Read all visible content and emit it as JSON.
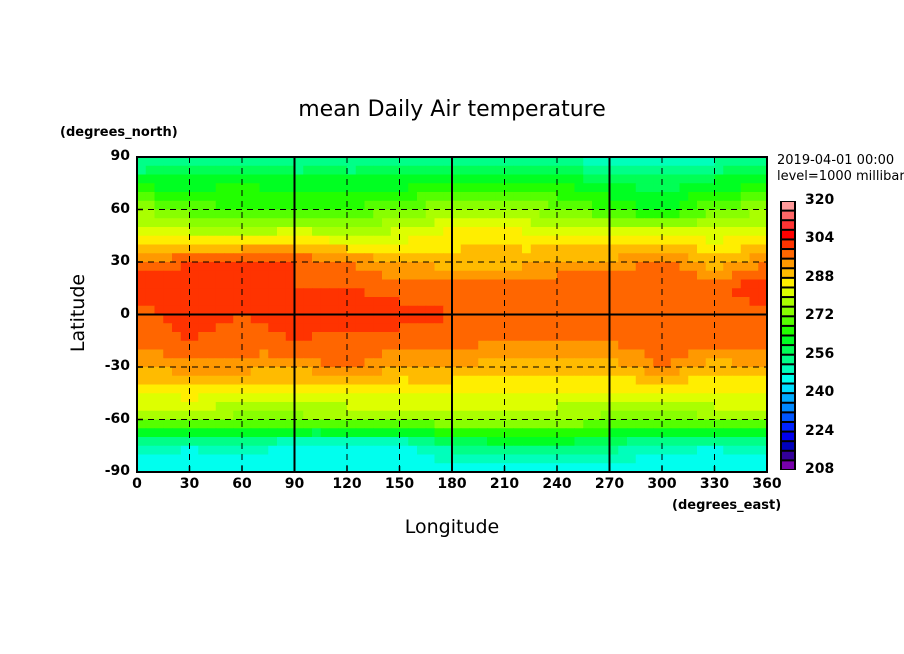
{
  "chart_data": {
    "type": "heatmap",
    "title": "mean Daily Air temperature",
    "xlabel": "Longitude",
    "ylabel": "Latitude",
    "x_units": "(degrees_east)",
    "y_units": "(degrees_north)",
    "annotation_time": "2019-04-01 00:00",
    "annotation_level": "level=1000 millibar",
    "xlim": [
      0,
      360
    ],
    "ylim": [
      -90,
      90
    ],
    "xticks": [
      "0",
      "30",
      "60",
      "90",
      "120",
      "150",
      "180",
      "210",
      "240",
      "270",
      "300",
      "330",
      "360"
    ],
    "yticks": [
      "90",
      "60",
      "30",
      "0",
      "-30",
      "-60",
      "-90"
    ],
    "grid": true,
    "colorbar": {
      "min": 208,
      "max": 320,
      "step": 4,
      "tick_labels": [
        "320",
        "304",
        "288",
        "272",
        "256",
        "240",
        "224",
        "208"
      ],
      "colors_low_to_high": [
        "#7700aa",
        "#330099",
        "#0000bb",
        "#0000ee",
        "#0022ff",
        "#0055ff",
        "#0088ff",
        "#00aaff",
        "#00ddff",
        "#00ffee",
        "#00ffbb",
        "#00ff88",
        "#00ff55",
        "#00ff22",
        "#22ff00",
        "#55ff00",
        "#88ff00",
        "#aaff00",
        "#ddff00",
        "#ffee00",
        "#ffbb00",
        "#ff9900",
        "#ff6600",
        "#ff3300",
        "#ff0000",
        "#ff3333",
        "#ff6666",
        "#ff9999"
      ]
    },
    "grid_lon": [
      0,
      30,
      60,
      90,
      120,
      150,
      180,
      210,
      240,
      270,
      300,
      330,
      360
    ],
    "grid_lat": [
      90,
      75,
      60,
      45,
      30,
      15,
      0,
      -15,
      -30,
      -45,
      -60,
      -75,
      -90
    ],
    "values_K": [
      [
        250,
        250,
        250,
        250,
        250,
        250,
        250,
        250,
        250,
        250,
        250,
        250,
        250
      ],
      [
        262,
        262,
        264,
        262,
        262,
        262,
        264,
        266,
        264,
        260,
        258,
        262,
        262
      ],
      [
        276,
        270,
        268,
        266,
        268,
        272,
        276,
        278,
        272,
        268,
        262,
        272,
        276
      ],
      [
        284,
        282,
        280,
        284,
        280,
        282,
        286,
        286,
        284,
        284,
        286,
        282,
        284
      ],
      [
        296,
        300,
        304,
        300,
        296,
        292,
        290,
        290,
        292,
        292,
        298,
        290,
        296
      ],
      [
        304,
        302,
        302,
        300,
        300,
        298,
        298,
        298,
        300,
        300,
        300,
        298,
        304
      ],
      [
        298,
        302,
        300,
        302,
        304,
        302,
        300,
        298,
        298,
        298,
        300,
        298,
        298
      ],
      [
        298,
        300,
        298,
        300,
        298,
        298,
        298,
        296,
        296,
        296,
        300,
        298,
        298
      ],
      [
        292,
        294,
        294,
        292,
        298,
        292,
        292,
        290,
        290,
        290,
        296,
        290,
        292
      ],
      [
        284,
        286,
        284,
        284,
        284,
        284,
        284,
        284,
        284,
        284,
        282,
        284,
        284
      ],
      [
        276,
        276,
        274,
        274,
        276,
        276,
        276,
        276,
        276,
        274,
        272,
        276,
        276
      ],
      [
        252,
        248,
        252,
        246,
        244,
        246,
        254,
        258,
        258,
        254,
        250,
        248,
        252
      ],
      [
        244,
        244,
        244,
        244,
        244,
        244,
        244,
        244,
        244,
        244,
        244,
        244,
        244
      ]
    ]
  }
}
